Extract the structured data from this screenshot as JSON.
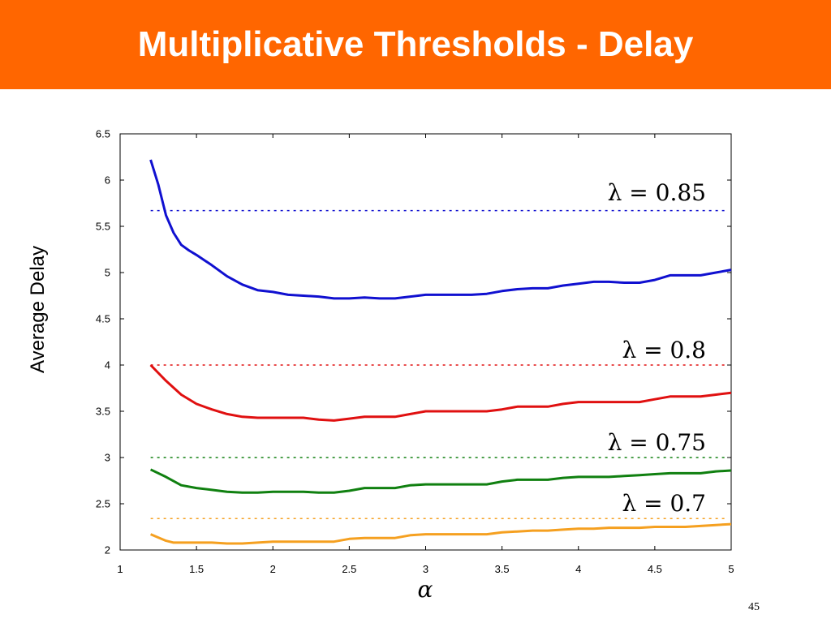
{
  "slide": {
    "title": "Multiplicative Thresholds - Delay",
    "page_number": "45"
  },
  "colors": {
    "title_bar": "#ff6600",
    "blue": "#1010d0",
    "red": "#e01010",
    "green": "#108010",
    "orange": "#f5a020"
  },
  "chart_data": {
    "type": "line",
    "xlabel": "α",
    "ylabel": "Average Delay",
    "xlim": [
      1,
      5
    ],
    "ylim": [
      2,
      6.5
    ],
    "xticks": [
      "1",
      "1.5",
      "2",
      "2.5",
      "3",
      "3.5",
      "4",
      "4.5",
      "5"
    ],
    "yticks": [
      "2",
      "2.5",
      "3",
      "3.5",
      "4",
      "4.5",
      "5",
      "5.5",
      "6",
      "6.5"
    ],
    "grid": false,
    "series": [
      {
        "color": "#1010d0",
        "x": [
          1.2,
          1.25,
          1.3,
          1.35,
          1.4,
          1.45,
          1.5,
          1.6,
          1.7,
          1.8,
          1.9,
          2.0,
          2.1,
          2.2,
          2.3,
          2.4,
          2.5,
          2.6,
          2.7,
          2.8,
          2.9,
          3.0,
          3.1,
          3.2,
          3.3,
          3.4,
          3.5,
          3.6,
          3.7,
          3.8,
          3.9,
          4.0,
          4.1,
          4.2,
          4.3,
          4.4,
          4.5,
          4.6,
          4.7,
          4.8,
          4.9,
          5.0
        ],
        "y": [
          6.22,
          5.95,
          5.62,
          5.43,
          5.3,
          5.24,
          5.19,
          5.08,
          4.96,
          4.87,
          4.81,
          4.79,
          4.76,
          4.75,
          4.74,
          4.72,
          4.72,
          4.73,
          4.72,
          4.72,
          4.74,
          4.76,
          4.76,
          4.76,
          4.76,
          4.77,
          4.8,
          4.82,
          4.83,
          4.83,
          4.86,
          4.88,
          4.9,
          4.9,
          4.89,
          4.89,
          4.92,
          4.97,
          4.97,
          4.97,
          5.0,
          5.03
        ]
      },
      {
        "color": "#e01010",
        "x": [
          1.2,
          1.3,
          1.4,
          1.5,
          1.6,
          1.7,
          1.8,
          1.9,
          2.0,
          2.1,
          2.2,
          2.3,
          2.4,
          2.5,
          2.6,
          2.7,
          2.8,
          2.9,
          3.0,
          3.1,
          3.2,
          3.3,
          3.4,
          3.5,
          3.6,
          3.7,
          3.8,
          3.9,
          4.0,
          4.1,
          4.2,
          4.3,
          4.4,
          4.5,
          4.6,
          4.7,
          4.8,
          4.9,
          5.0
        ],
        "y": [
          4.0,
          3.83,
          3.68,
          3.58,
          3.52,
          3.47,
          3.44,
          3.43,
          3.43,
          3.43,
          3.43,
          3.41,
          3.4,
          3.42,
          3.44,
          3.44,
          3.44,
          3.47,
          3.5,
          3.5,
          3.5,
          3.5,
          3.5,
          3.52,
          3.55,
          3.55,
          3.55,
          3.58,
          3.6,
          3.6,
          3.6,
          3.6,
          3.6,
          3.63,
          3.66,
          3.66,
          3.66,
          3.68,
          3.7
        ]
      },
      {
        "color": "#108010",
        "x": [
          1.2,
          1.3,
          1.4,
          1.5,
          1.6,
          1.7,
          1.8,
          1.9,
          2.0,
          2.1,
          2.2,
          2.3,
          2.4,
          2.5,
          2.6,
          2.7,
          2.8,
          2.9,
          3.0,
          3.1,
          3.2,
          3.3,
          3.4,
          3.5,
          3.6,
          3.7,
          3.8,
          3.9,
          4.0,
          4.1,
          4.2,
          4.3,
          4.4,
          4.5,
          4.6,
          4.7,
          4.8,
          4.9,
          5.0
        ],
        "y": [
          2.87,
          2.79,
          2.7,
          2.67,
          2.65,
          2.63,
          2.62,
          2.62,
          2.63,
          2.63,
          2.63,
          2.62,
          2.62,
          2.64,
          2.67,
          2.67,
          2.67,
          2.7,
          2.71,
          2.71,
          2.71,
          2.71,
          2.71,
          2.74,
          2.76,
          2.76,
          2.76,
          2.78,
          2.79,
          2.79,
          2.79,
          2.8,
          2.81,
          2.82,
          2.83,
          2.83,
          2.83,
          2.85,
          2.86
        ]
      },
      {
        "color": "#f5a020",
        "x": [
          1.2,
          1.3,
          1.35,
          1.4,
          1.5,
          1.6,
          1.7,
          1.8,
          1.9,
          2.0,
          2.1,
          2.2,
          2.3,
          2.4,
          2.5,
          2.6,
          2.7,
          2.8,
          2.9,
          3.0,
          3.1,
          3.2,
          3.3,
          3.4,
          3.5,
          3.6,
          3.7,
          3.8,
          3.9,
          4.0,
          4.1,
          4.2,
          4.3,
          4.4,
          4.5,
          4.6,
          4.7,
          4.8,
          4.9,
          5.0
        ],
        "y": [
          2.17,
          2.1,
          2.08,
          2.08,
          2.08,
          2.08,
          2.07,
          2.07,
          2.08,
          2.09,
          2.09,
          2.09,
          2.09,
          2.09,
          2.12,
          2.13,
          2.13,
          2.13,
          2.16,
          2.17,
          2.17,
          2.17,
          2.17,
          2.17,
          2.19,
          2.2,
          2.21,
          2.21,
          2.22,
          2.23,
          2.23,
          2.24,
          2.24,
          2.24,
          2.25,
          2.25,
          2.25,
          2.26,
          2.27,
          2.28
        ]
      }
    ],
    "reference_lines": [
      {
        "label": "λ = 0.85",
        "y": 5.67,
        "color": "#1010d0",
        "label_y": 5.85
      },
      {
        "label": "λ = 0.8",
        "y": 4.0,
        "color": "#e01010",
        "label_y": 4.15
      },
      {
        "label": "λ = 0.75",
        "y": 3.0,
        "color": "#108010",
        "label_y": 3.15
      },
      {
        "label": "λ = 0.7",
        "y": 2.34,
        "color": "#f5a020",
        "label_y": 2.49
      }
    ]
  }
}
